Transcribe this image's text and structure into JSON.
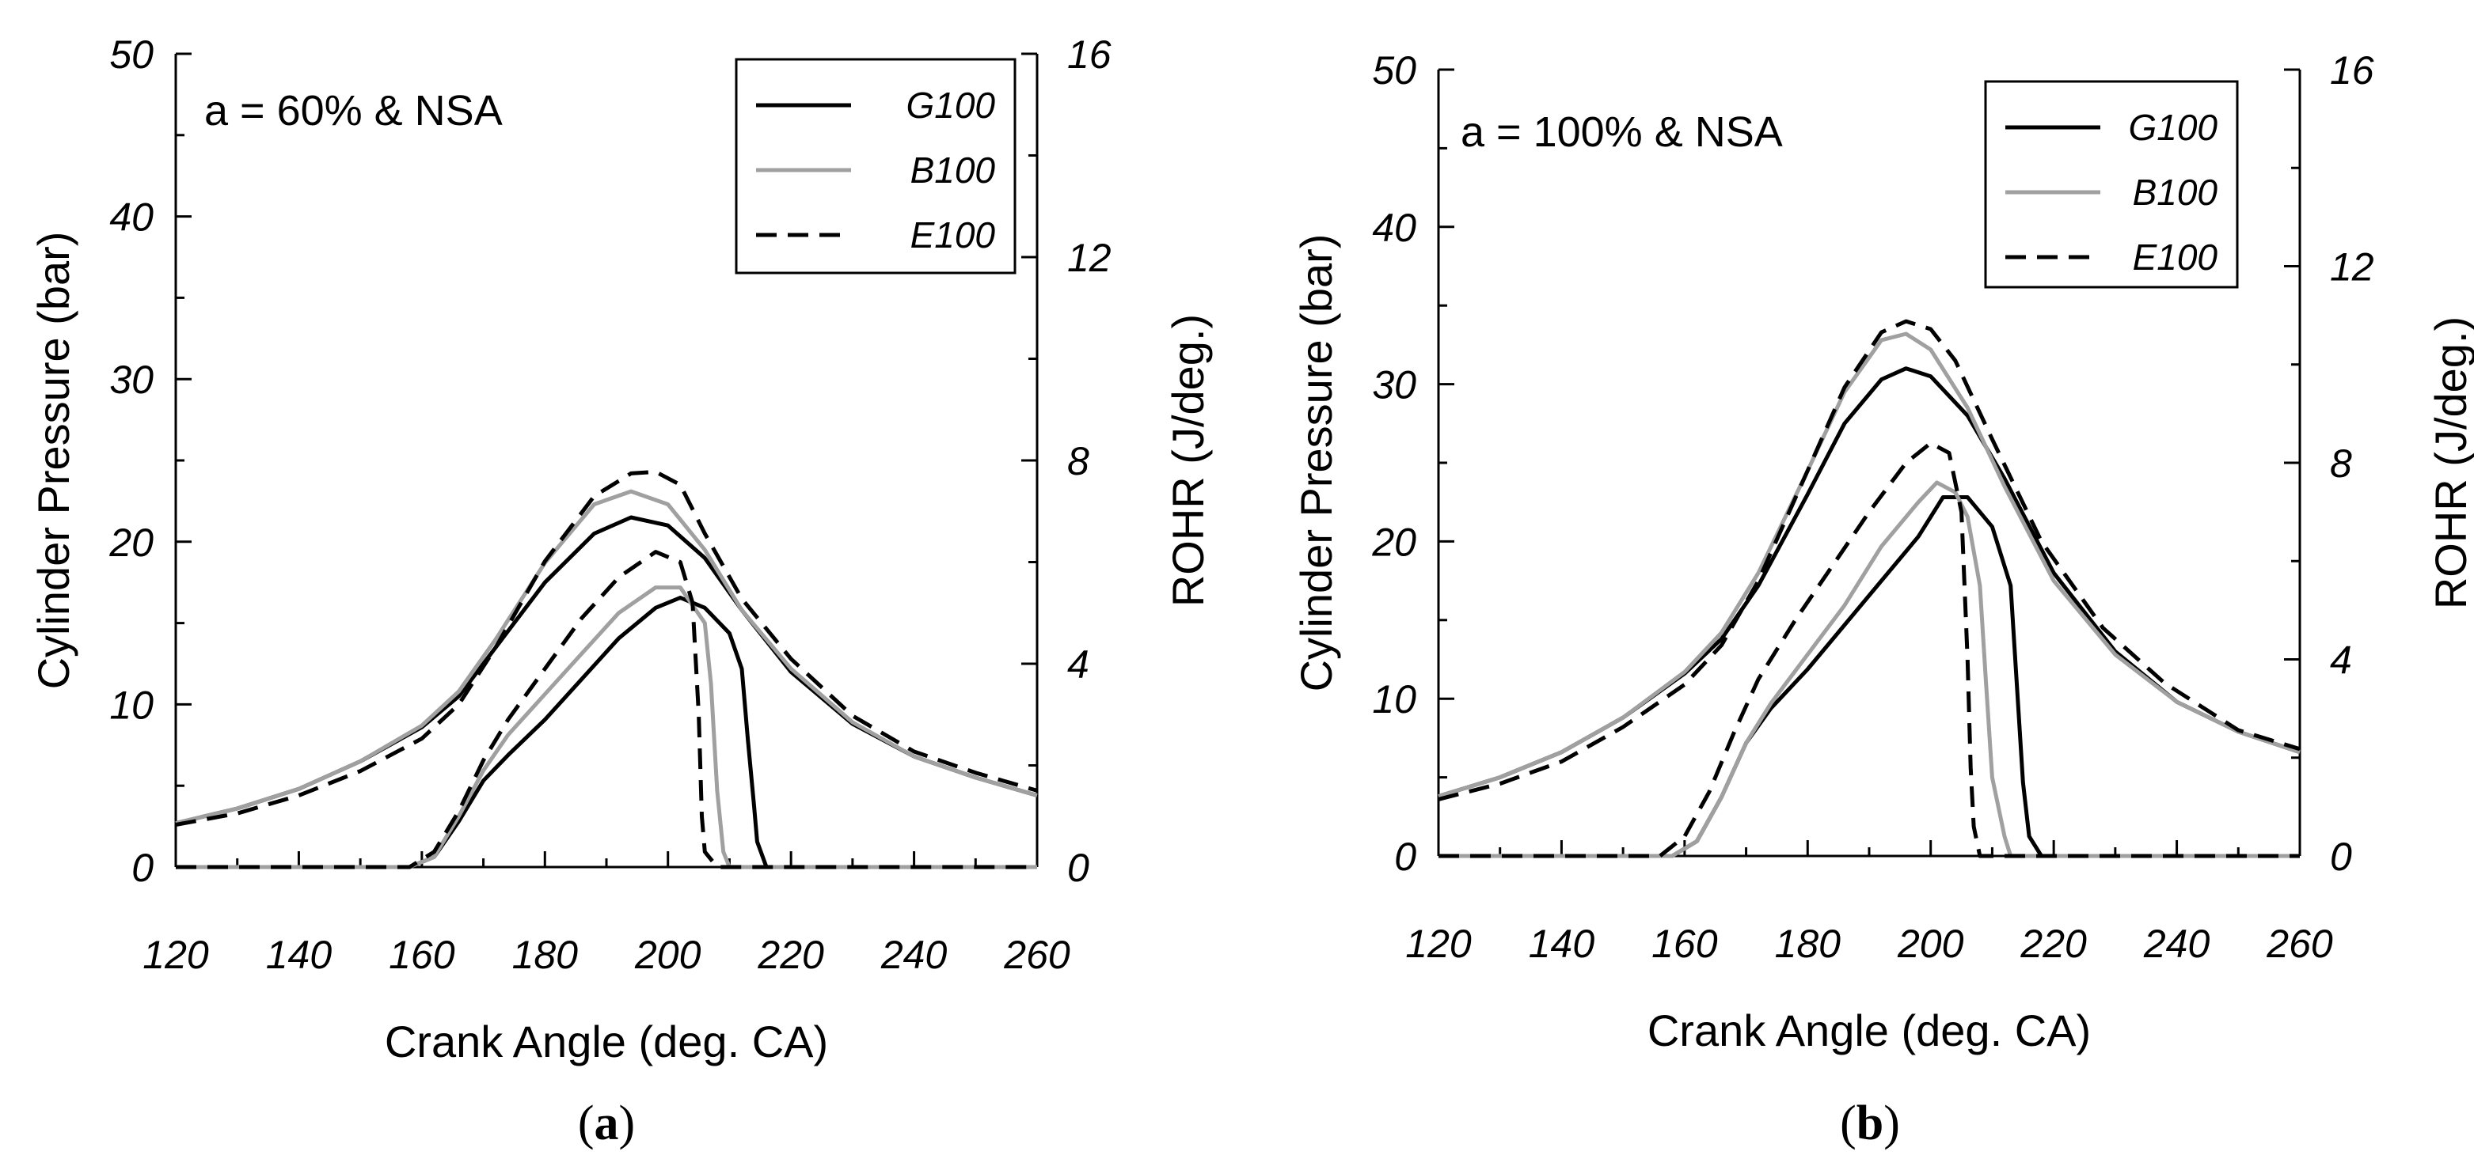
{
  "chart_data": [
    {
      "type": "line",
      "panel_label": "a",
      "annotation": "a = 60% & NSA",
      "xlabel": "Crank Angle (deg. CA)",
      "ylabel": "Cylinder  Pressure (bar)",
      "y2label": "ROHR (J/deg.)",
      "xlim": [
        120,
        260
      ],
      "ylim": [
        0,
        50
      ],
      "y2lim": [
        0,
        16
      ],
      "xticks": [
        "120",
        "140",
        "160",
        "180",
        "200",
        "220",
        "240",
        "260"
      ],
      "yticks": [
        "0",
        "10",
        "20",
        "30",
        "40",
        "50"
      ],
      "y2ticks": [
        "0",
        "4",
        "8",
        "12",
        "16"
      ],
      "legend": [
        "G100",
        "B100",
        "E100"
      ],
      "legend_position": "top-right",
      "grid": false,
      "series": [
        {
          "name": "G100",
          "axis": "left",
          "style": "solid",
          "color": "#000000",
          "x": [
            120,
            130,
            140,
            150,
            160,
            166,
            172,
            180,
            188,
            194,
            200,
            206,
            212,
            220,
            230,
            240,
            250,
            260
          ],
          "y": [
            2.7,
            3.6,
            4.8,
            6.5,
            8.6,
            10.5,
            13.5,
            17.5,
            20.5,
            21.5,
            21.0,
            19.0,
            15.8,
            12.0,
            8.8,
            6.8,
            5.5,
            4.4
          ]
        },
        {
          "name": "B100",
          "axis": "left",
          "style": "solid",
          "color": "#a0a0a0",
          "x": [
            120,
            130,
            140,
            150,
            160,
            166,
            172,
            180,
            188,
            194,
            200,
            206,
            212,
            220,
            230,
            240,
            250,
            260
          ],
          "y": [
            2.7,
            3.6,
            4.8,
            6.5,
            8.7,
            10.8,
            14.0,
            18.7,
            22.3,
            23.1,
            22.3,
            19.5,
            15.8,
            12.2,
            8.9,
            6.8,
            5.5,
            4.4
          ]
        },
        {
          "name": "E100",
          "axis": "left",
          "style": "dashed",
          "color": "#000000",
          "x": [
            120,
            130,
            140,
            150,
            160,
            166,
            172,
            180,
            188,
            194,
            198,
            202,
            206,
            212,
            220,
            230,
            240,
            250,
            260
          ],
          "y": [
            2.6,
            3.3,
            4.4,
            5.9,
            7.9,
            10.0,
            13.5,
            18.8,
            22.8,
            24.2,
            24.3,
            23.5,
            20.5,
            16.5,
            12.8,
            9.3,
            7.1,
            5.8,
            4.7
          ]
        },
        {
          "name": "G100",
          "axis": "right",
          "style": "solid",
          "color": "#000000",
          "x": [
            120,
            158,
            162,
            166,
            170,
            174,
            180,
            186,
            192,
            198,
            202,
            206,
            210,
            212,
            213,
            214,
            214.5,
            216,
            260
          ],
          "y": [
            0,
            0,
            0.2,
            0.9,
            1.7,
            2.2,
            2.9,
            3.7,
            4.5,
            5.1,
            5.3,
            5.1,
            4.6,
            3.9,
            2.5,
            1.2,
            0.5,
            0,
            0
          ]
        },
        {
          "name": "B100",
          "axis": "right",
          "style": "solid",
          "color": "#a0a0a0",
          "x": [
            120,
            158,
            162,
            166,
            170,
            174,
            180,
            186,
            192,
            198,
            202,
            206,
            207,
            208,
            209,
            210,
            260
          ],
          "y": [
            0,
            0,
            0.2,
            1.0,
            1.9,
            2.6,
            3.4,
            4.2,
            5.0,
            5.5,
            5.5,
            4.8,
            3.6,
            1.5,
            0.3,
            0,
            0
          ]
        },
        {
          "name": "E100",
          "axis": "right",
          "style": "dashed",
          "color": "#000000",
          "x": [
            120,
            158,
            162,
            166,
            170,
            174,
            180,
            186,
            192,
            198,
            202,
            204,
            205,
            205.5,
            206,
            208,
            260
          ],
          "y": [
            0,
            0,
            0.3,
            1.1,
            2.1,
            2.9,
            3.9,
            4.9,
            5.7,
            6.2,
            6.0,
            5.2,
            3.0,
            1.0,
            0.3,
            0,
            0
          ]
        }
      ]
    },
    {
      "type": "line",
      "panel_label": "b",
      "annotation": "a = 100% & NSA",
      "xlabel": "Crank Angle (deg. CA)",
      "ylabel": "Cylinder  Pressure (bar)",
      "y2label": "ROHR (J/deg.)",
      "xlim": [
        120,
        260
      ],
      "ylim": [
        0,
        50
      ],
      "y2lim": [
        0,
        16
      ],
      "xticks": [
        "120",
        "140",
        "160",
        "180",
        "200",
        "220",
        "240",
        "260"
      ],
      "yticks": [
        "0",
        "10",
        "20",
        "30",
        "40",
        "50"
      ],
      "y2ticks": [
        "0",
        "4",
        "8",
        "12",
        "16"
      ],
      "legend": [
        "G100",
        "B100",
        "E100"
      ],
      "legend_position": "top-right",
      "grid": false,
      "series": [
        {
          "name": "G100",
          "axis": "left",
          "style": "solid",
          "color": "#000000",
          "x": [
            120,
            130,
            140,
            150,
            160,
            166,
            172,
            180,
            186,
            192,
            196,
            200,
            206,
            212,
            220,
            230,
            240,
            250,
            260
          ],
          "y": [
            3.8,
            5.0,
            6.6,
            8.8,
            11.6,
            13.8,
            17.2,
            23.0,
            27.5,
            30.3,
            31.0,
            30.5,
            28.0,
            24.0,
            18.0,
            13.0,
            9.8,
            7.9,
            6.6
          ]
        },
        {
          "name": "B100",
          "axis": "left",
          "style": "solid",
          "color": "#a0a0a0",
          "x": [
            120,
            130,
            140,
            150,
            160,
            166,
            172,
            180,
            186,
            192,
            196,
            200,
            206,
            212,
            220,
            230,
            240,
            250,
            260
          ],
          "y": [
            3.8,
            5.0,
            6.6,
            8.8,
            11.7,
            14.2,
            18.0,
            24.5,
            29.5,
            32.8,
            33.2,
            32.2,
            28.5,
            23.5,
            17.5,
            12.8,
            9.8,
            7.9,
            6.6
          ]
        },
        {
          "name": "E100",
          "axis": "left",
          "style": "dashed",
          "color": "#000000",
          "x": [
            120,
            130,
            140,
            150,
            160,
            166,
            172,
            180,
            186,
            192,
            196,
            200,
            204,
            210,
            218,
            228,
            238,
            250,
            260
          ],
          "y": [
            3.6,
            4.6,
            6.0,
            8.2,
            10.9,
            13.4,
            17.5,
            24.5,
            29.8,
            33.3,
            34.0,
            33.5,
            31.5,
            26.5,
            20.0,
            14.5,
            11.0,
            8.0,
            6.8
          ]
        },
        {
          "name": "G100",
          "axis": "right",
          "style": "solid",
          "color": "#000000",
          "x": [
            120,
            158,
            162,
            166,
            170,
            174,
            180,
            186,
            192,
            198,
            202,
            206,
            210,
            213,
            214,
            215,
            216,
            218,
            260
          ],
          "y": [
            0,
            0,
            0.3,
            1.2,
            2.3,
            3.0,
            3.8,
            4.7,
            5.6,
            6.5,
            7.3,
            7.3,
            6.7,
            5.5,
            3.5,
            1.5,
            0.4,
            0,
            0
          ]
        },
        {
          "name": "B100",
          "axis": "right",
          "style": "solid",
          "color": "#a0a0a0",
          "x": [
            120,
            158,
            162,
            166,
            170,
            174,
            180,
            186,
            192,
            198,
            201,
            204,
            206,
            208,
            209,
            210,
            212,
            213,
            260
          ],
          "y": [
            0,
            0,
            0.3,
            1.2,
            2.3,
            3.1,
            4.1,
            5.1,
            6.3,
            7.2,
            7.6,
            7.4,
            6.9,
            5.5,
            3.5,
            1.6,
            0.4,
            0,
            0
          ]
        },
        {
          "name": "E100",
          "axis": "right",
          "style": "dashed",
          "color": "#000000",
          "x": [
            120,
            156,
            160,
            164,
            168,
            172,
            178,
            184,
            190,
            196,
            200,
            203,
            205,
            206,
            206.5,
            207,
            208,
            260
          ],
          "y": [
            0,
            0,
            0.4,
            1.3,
            2.5,
            3.6,
            4.8,
            5.9,
            7.0,
            8.0,
            8.4,
            8.2,
            7.0,
            4.0,
            1.8,
            0.6,
            0,
            0
          ]
        }
      ]
    }
  ]
}
